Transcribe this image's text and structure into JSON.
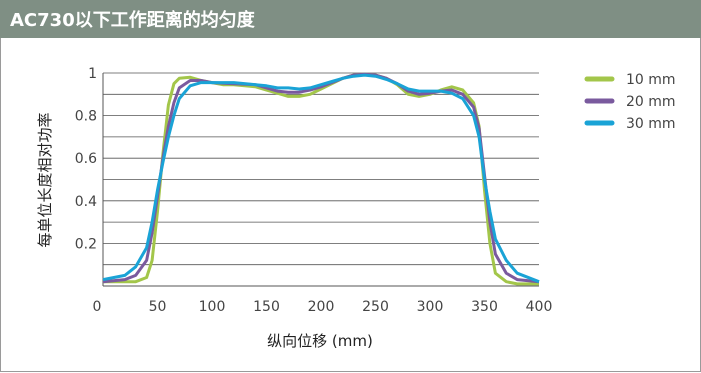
{
  "header": {
    "title": "AC730以下工作距离的均匀度",
    "bg_color": "#7f8f84"
  },
  "chart_data": {
    "type": "line",
    "title": "AC730以下工作距离的均匀度",
    "xlabel": "纵向位移 (mm)",
    "ylabel": "每单位长度相对功率",
    "xlim": [
      0,
      400
    ],
    "ylim": [
      0,
      1
    ],
    "xticks": [
      0,
      50,
      100,
      150,
      200,
      250,
      300,
      350,
      400
    ],
    "yticks": [
      0.2,
      0.4,
      0.6,
      0.8,
      1
    ],
    "ytick_labels": [
      "0.2",
      "0.4",
      "0.6",
      "0.8",
      "1"
    ],
    "grid": "horizontal",
    "legend_position": "right",
    "series": [
      {
        "name": "10 mm",
        "color": "#a3c64a",
        "points": [
          [
            0,
            0.02
          ],
          [
            20,
            0.02
          ],
          [
            30,
            0.02
          ],
          [
            40,
            0.04
          ],
          [
            45,
            0.12
          ],
          [
            50,
            0.35
          ],
          [
            55,
            0.62
          ],
          [
            60,
            0.85
          ],
          [
            65,
            0.95
          ],
          [
            70,
            0.975
          ],
          [
            80,
            0.98
          ],
          [
            90,
            0.965
          ],
          [
            100,
            0.955
          ],
          [
            110,
            0.945
          ],
          [
            120,
            0.945
          ],
          [
            130,
            0.94
          ],
          [
            140,
            0.935
          ],
          [
            150,
            0.92
          ],
          [
            160,
            0.905
          ],
          [
            170,
            0.89
          ],
          [
            180,
            0.89
          ],
          [
            190,
            0.9
          ],
          [
            200,
            0.925
          ],
          [
            210,
            0.95
          ],
          [
            220,
            0.975
          ],
          [
            230,
            0.99
          ],
          [
            240,
            0.995
          ],
          [
            250,
            0.99
          ],
          [
            260,
            0.975
          ],
          [
            270,
            0.945
          ],
          [
            280,
            0.9
          ],
          [
            290,
            0.89
          ],
          [
            300,
            0.9
          ],
          [
            310,
            0.92
          ],
          [
            320,
            0.935
          ],
          [
            330,
            0.92
          ],
          [
            340,
            0.86
          ],
          [
            345,
            0.75
          ],
          [
            350,
            0.45
          ],
          [
            355,
            0.2
          ],
          [
            360,
            0.06
          ],
          [
            370,
            0.02
          ],
          [
            380,
            0.01
          ],
          [
            400,
            0.01
          ]
        ]
      },
      {
        "name": "20 mm",
        "color": "#7a5a9e",
        "points": [
          [
            0,
            0.02
          ],
          [
            20,
            0.03
          ],
          [
            30,
            0.05
          ],
          [
            40,
            0.12
          ],
          [
            45,
            0.25
          ],
          [
            50,
            0.42
          ],
          [
            55,
            0.6
          ],
          [
            60,
            0.75
          ],
          [
            65,
            0.86
          ],
          [
            70,
            0.93
          ],
          [
            80,
            0.965
          ],
          [
            90,
            0.965
          ],
          [
            100,
            0.955
          ],
          [
            120,
            0.95
          ],
          [
            140,
            0.945
          ],
          [
            150,
            0.93
          ],
          [
            160,
            0.915
          ],
          [
            170,
            0.91
          ],
          [
            180,
            0.91
          ],
          [
            190,
            0.92
          ],
          [
            200,
            0.935
          ],
          [
            210,
            0.955
          ],
          [
            220,
            0.975
          ],
          [
            230,
            0.99
          ],
          [
            240,
            0.995
          ],
          [
            250,
            0.99
          ],
          [
            260,
            0.975
          ],
          [
            270,
            0.95
          ],
          [
            280,
            0.915
          ],
          [
            290,
            0.9
          ],
          [
            300,
            0.905
          ],
          [
            310,
            0.915
          ],
          [
            320,
            0.92
          ],
          [
            330,
            0.9
          ],
          [
            340,
            0.84
          ],
          [
            345,
            0.74
          ],
          [
            350,
            0.52
          ],
          [
            355,
            0.3
          ],
          [
            360,
            0.15
          ],
          [
            370,
            0.06
          ],
          [
            380,
            0.03
          ],
          [
            400,
            0.02
          ]
        ]
      },
      {
        "name": "30 mm",
        "color": "#1aa3d6",
        "points": [
          [
            0,
            0.03
          ],
          [
            20,
            0.05
          ],
          [
            30,
            0.09
          ],
          [
            40,
            0.18
          ],
          [
            45,
            0.3
          ],
          [
            50,
            0.45
          ],
          [
            55,
            0.58
          ],
          [
            60,
            0.7
          ],
          [
            65,
            0.8
          ],
          [
            70,
            0.88
          ],
          [
            80,
            0.94
          ],
          [
            90,
            0.955
          ],
          [
            100,
            0.955
          ],
          [
            120,
            0.955
          ],
          [
            140,
            0.945
          ],
          [
            150,
            0.94
          ],
          [
            160,
            0.93
          ],
          [
            170,
            0.93
          ],
          [
            180,
            0.925
          ],
          [
            190,
            0.93
          ],
          [
            200,
            0.945
          ],
          [
            210,
            0.96
          ],
          [
            220,
            0.975
          ],
          [
            230,
            0.985
          ],
          [
            240,
            0.99
          ],
          [
            250,
            0.985
          ],
          [
            260,
            0.97
          ],
          [
            270,
            0.95
          ],
          [
            280,
            0.925
          ],
          [
            290,
            0.915
          ],
          [
            300,
            0.915
          ],
          [
            310,
            0.915
          ],
          [
            320,
            0.905
          ],
          [
            330,
            0.88
          ],
          [
            340,
            0.8
          ],
          [
            345,
            0.7
          ],
          [
            350,
            0.5
          ],
          [
            355,
            0.35
          ],
          [
            360,
            0.22
          ],
          [
            370,
            0.12
          ],
          [
            380,
            0.06
          ],
          [
            400,
            0.02
          ]
        ]
      }
    ]
  }
}
